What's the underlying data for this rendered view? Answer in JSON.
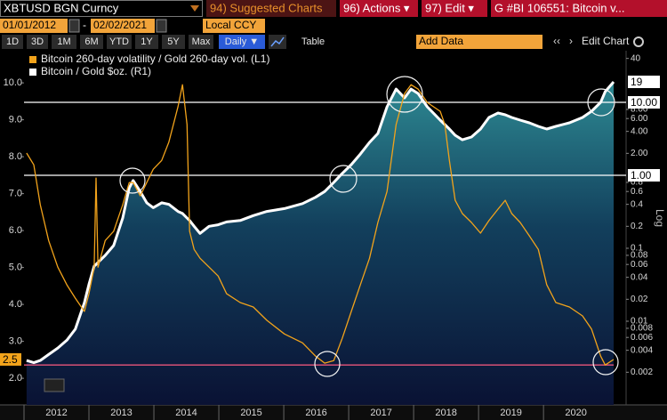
{
  "toolbar": {
    "security": "XBTUSD BGN Curncy",
    "menu": [
      "94) Suggested Charts",
      "96) Actions ▾",
      "97) Edit ▾",
      "G #BI 106551: Bitcoin v..."
    ],
    "start_date": "01/01/2012",
    "date_sep": "-",
    "end_date": "02/02/2021",
    "currency": "Local CCY",
    "periods": [
      "1D",
      "3D",
      "1M",
      "6M",
      "YTD",
      "1Y",
      "5Y",
      "Max"
    ],
    "frequency": "Daily ▼",
    "table": "Table",
    "add_data": "Add Data",
    "edit_chart": "Edit Chart"
  },
  "chart_data": {
    "type": "line",
    "legend_position": "upper left",
    "grid": false,
    "x": [
      2012.04,
      2012.15,
      2012.25,
      2012.38,
      2012.52,
      2012.66,
      2012.79,
      2012.93,
      2013.0,
      2013.08,
      2013.11,
      2013.14,
      2013.25,
      2013.38,
      2013.52,
      2013.62,
      2013.68,
      2013.79,
      2013.89,
      2013.99,
      2014.12,
      2014.23,
      2014.37,
      2014.44,
      2014.51,
      2014.55,
      2014.62,
      2014.71,
      2014.85,
      2014.99,
      2015.12,
      2015.33,
      2015.53,
      2015.74,
      2016.01,
      2016.29,
      2016.49,
      2016.63,
      2016.77,
      2016.9,
      2017.04,
      2017.18,
      2017.32,
      2017.45,
      2017.59,
      2017.73,
      2017.86,
      2017.96,
      2018.07,
      2018.21,
      2018.41,
      2018.48,
      2018.55,
      2018.64,
      2018.75,
      2018.89,
      2019.03,
      2019.16,
      2019.3,
      2019.41,
      2019.51,
      2019.64,
      2019.78,
      2019.92,
      2020.05,
      2020.19,
      2020.4,
      2020.6,
      2020.74,
      2020.88,
      2020.95,
      2021.08
    ],
    "series": [
      {
        "name": "Bitcoin 260-day volatility / Gold 260-day vol. (L1)",
        "color": "#f2a31b",
        "axis": "y",
        "last_label": "2.5",
        "values": [
          8.1,
          7.78,
          6.7,
          5.73,
          5.01,
          4.53,
          4.17,
          3.81,
          4.29,
          5.01,
          7.42,
          5.01,
          5.73,
          5.98,
          6.7,
          7.3,
          7.3,
          6.94,
          7.3,
          7.66,
          7.9,
          8.39,
          9.35,
          9.95,
          8.87,
          5.98,
          5.49,
          5.25,
          5.01,
          4.77,
          4.29,
          4.05,
          3.93,
          3.57,
          3.2,
          2.96,
          2.6,
          2.41,
          2.48,
          3.08,
          3.81,
          4.53,
          5.25,
          6.22,
          7.06,
          8.87,
          9.71,
          9.95,
          9.83,
          9.47,
          9.23,
          8.87,
          7.9,
          6.82,
          6.46,
          6.22,
          5.93,
          6.27,
          6.58,
          6.82,
          6.46,
          6.22,
          5.86,
          5.49,
          4.53,
          4.05,
          3.93,
          3.69,
          3.33,
          2.6,
          2.36,
          2.51
        ]
      },
      {
        "name": "Bitcoin / Gold $oz. (R1)",
        "color": "#ffffff",
        "axis": "y2",
        "last_label": "19",
        "values": [
          0.0029,
          0.0027,
          0.0029,
          0.0035,
          0.0043,
          0.0055,
          0.0078,
          0.018,
          0.032,
          0.057,
          0.06,
          0.064,
          0.08,
          0.109,
          0.26,
          0.67,
          0.85,
          0.6,
          0.42,
          0.36,
          0.42,
          0.4,
          0.32,
          0.3,
          0.26,
          0.24,
          0.2,
          0.16,
          0.2,
          0.21,
          0.23,
          0.24,
          0.28,
          0.32,
          0.35,
          0.41,
          0.5,
          0.6,
          0.8,
          1.06,
          1.4,
          1.96,
          2.83,
          3.74,
          8.69,
          15.2,
          11.5,
          15.2,
          13.2,
          8.69,
          5.7,
          4.96,
          4.31,
          3.54,
          3.07,
          3.35,
          4.31,
          6.21,
          7.14,
          6.75,
          6.21,
          5.7,
          5.24,
          4.69,
          4.31,
          4.69,
          5.24,
          6.21,
          7.55,
          10.0,
          14.0,
          19.1
        ]
      }
    ],
    "xlim": [
      2012,
      2021.08
    ],
    "xticks": [
      2012,
      2013,
      2014,
      2015,
      2016,
      2017,
      2018,
      2019,
      2020
    ],
    "ylim": [
      1.28,
      10.87
    ],
    "yticks": [
      {
        "value": 10,
        "label": "10.0"
      },
      {
        "value": 9,
        "label": "9.0"
      },
      {
        "value": 8,
        "label": "8.0"
      },
      {
        "value": 7,
        "label": "7.0"
      },
      {
        "value": 6,
        "label": "6.0"
      },
      {
        "value": 5,
        "label": "5.0"
      },
      {
        "value": 4,
        "label": "4.0"
      },
      {
        "value": 3,
        "label": "3.0"
      },
      {
        "value": 2,
        "label": "2.0"
      }
    ],
    "y2scale": "log",
    "y2label": "Log",
    "y2lim": [
      0.000714,
      51
    ],
    "y2ticks": [
      40,
      {
        "value": 8,
        "label": "8.00"
      },
      {
        "value": 6,
        "label": "6.00"
      },
      {
        "value": 4,
        "label": "4.00"
      },
      {
        "value": 2,
        "label": "2.00"
      },
      0.8,
      0.6,
      0.4,
      0.2,
      0.1,
      0.08,
      0.06,
      0.04,
      0.02,
      0.01,
      0.008,
      0.006,
      0.004,
      0.002
    ],
    "hlines": [
      {
        "axis": "y2",
        "value": 10,
        "label": "10.00",
        "color": "#ffffff"
      },
      {
        "axis": "y2",
        "value": 1,
        "label": "1.00",
        "color": "#ffffff"
      },
      {
        "axis": "y",
        "value": 2.36,
        "color": "#e8547a"
      }
    ]
  }
}
